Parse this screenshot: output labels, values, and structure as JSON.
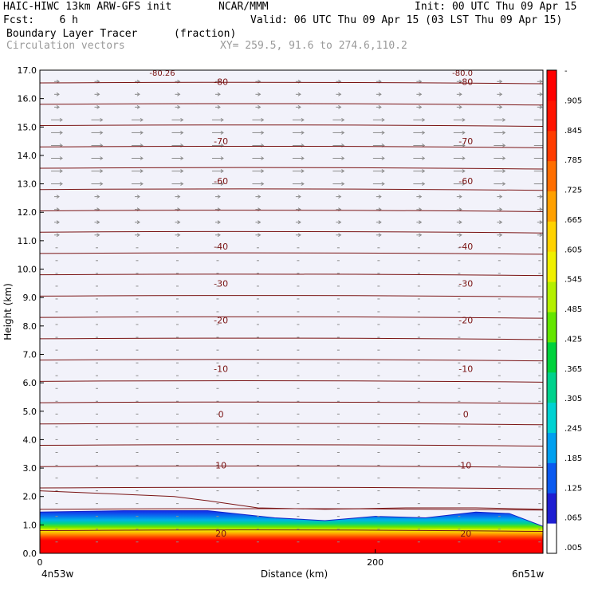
{
  "header": {
    "model": "HAIC-HIWC 13km ARW-GFS init",
    "org": "NCAR/MMM",
    "init": "Init: 00 UTC Thu 09 Apr 15",
    "fcst": "Fcst:    6 h",
    "valid": "Valid: 06 UTC Thu 09 Apr 15 (03 LST Thu 09 Apr 15)",
    "field1": "Boundary Layer Tracer",
    "field1_units": "(fraction)",
    "field2": "Circulation vectors",
    "xy": "XY= 259.5, 91.6 to 274.6,110.2"
  },
  "colors": {
    "contour": "#7a1414",
    "vector": "#8c8c8c",
    "colorbar": [
      "#ffffff",
      "#1e1ed2",
      "#0a5af0",
      "#00a0f0",
      "#00d2d2",
      "#00d28c",
      "#00d23c",
      "#64e600",
      "#b4f000",
      "#f0f000",
      "#ffd200",
      "#ffa000",
      "#ff6e00",
      "#ff3c00",
      "#ff1400",
      "#ff0000"
    ]
  },
  "chart_data": {
    "type": "contour",
    "xlabel": "Distance (km)",
    "ylabel": "Height (km)",
    "xlim": [
      0,
      300
    ],
    "ylim": [
      0,
      17
    ],
    "x_ticks": [
      "0",
      "200"
    ],
    "x_tick_values": [
      0,
      200
    ],
    "y_ticks": [
      "0.0",
      "1.0",
      "2.0",
      "3.0",
      "4.0",
      "5.0",
      "6.0",
      "7.0",
      "8.0",
      "9.0",
      "10.0",
      "11.0",
      "12.0",
      "13.0",
      "14.0",
      "15.0",
      "16.0",
      "17.0"
    ],
    "endpoint_left": "4n53w",
    "endpoint_right": "6n51w",
    "colorbar_labels": [
      ".005",
      ".065",
      ".125",
      ".185",
      ".245",
      ".305",
      ".365",
      ".425",
      ".485",
      ".545",
      ".605",
      ".665",
      ".725",
      ".785",
      ".845",
      ".905",
      "-"
    ],
    "temperature_contours": [
      {
        "label": "20",
        "y": 0.7
      },
      {
        "label": "10",
        "y": 3.1
      },
      {
        "label": "0",
        "y": 4.9
      },
      {
        "label": "-10",
        "y": 6.5
      },
      {
        "label": "-20",
        "y": 8.2
      },
      {
        "label": "-30",
        "y": 9.5
      },
      {
        "label": "-40",
        "y": 10.8
      },
      {
        "label": "-60",
        "y": 13.1
      },
      {
        "label": "-70",
        "y": 14.5
      },
      {
        "label": "-80",
        "y": 16.6
      }
    ],
    "top_labels": [
      "-80.26",
      "-80.0"
    ],
    "tracer_top": [
      [
        0,
        1.45
      ],
      [
        50,
        1.5
      ],
      [
        100,
        1.5
      ],
      [
        140,
        1.25
      ],
      [
        170,
        1.15
      ],
      [
        200,
        1.3
      ],
      [
        230,
        1.25
      ],
      [
        260,
        1.45
      ],
      [
        280,
        1.4
      ],
      [
        300,
        0.95
      ]
    ]
  }
}
